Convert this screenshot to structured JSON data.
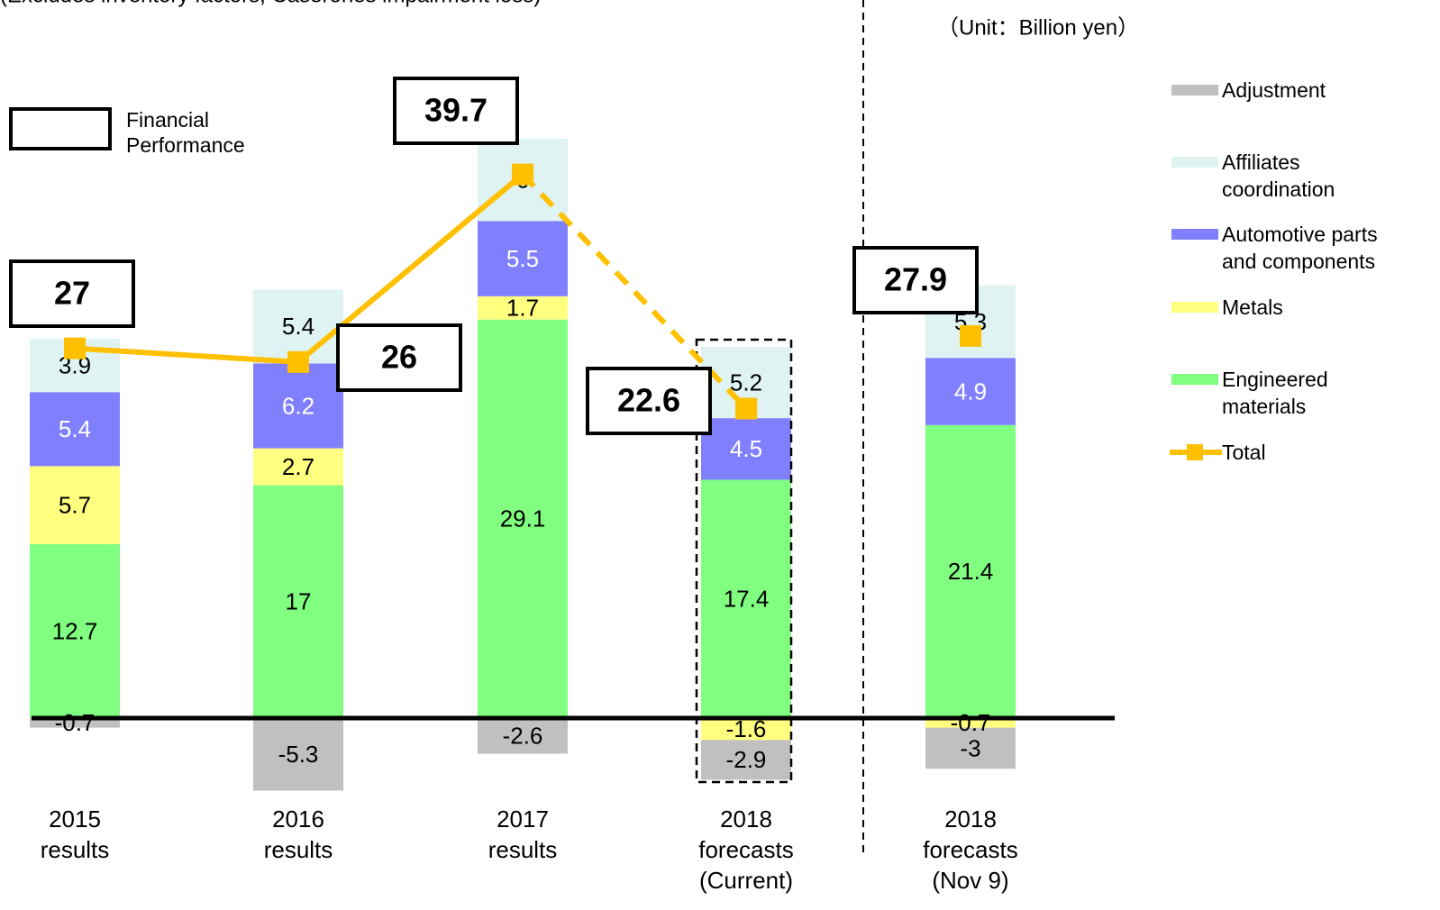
{
  "subtitle": "(Excludes inventory factors, Caserones impairment loss)",
  "unit_note": "（Unit：Billion yen）",
  "box_legend": "Financial Performance",
  "chart_data": {
    "type": "bar",
    "stacked": true,
    "categories": [
      "2015 results",
      "2016 results",
      "2017 results",
      "2018 forecasts (Current)",
      "2018 forecasts (Nov 9)"
    ],
    "series": [
      {
        "name": "Engineered materials",
        "color": "#80ff80",
        "label_color": "#000000",
        "values": [
          12.7,
          17.0,
          29.1,
          17.4,
          21.4
        ]
      },
      {
        "name": "Metals",
        "color": "#ffff80",
        "label_color": "#000000",
        "values": [
          5.7,
          2.7,
          1.7,
          -1.6,
          -0.7
        ]
      },
      {
        "name": "Automotive parts and components",
        "color": "#8080ff",
        "label_color": "#ffffff",
        "values": [
          5.4,
          6.2,
          5.5,
          4.5,
          4.9
        ]
      },
      {
        "name": "Affiliates coordination",
        "color": "#dff3f3",
        "label_color": "#000000",
        "values": [
          3.9,
          5.4,
          6.0,
          5.2,
          5.3
        ]
      },
      {
        "name": "Adjustment",
        "color": "#c0c0c0",
        "label_color": "#000000",
        "values": [
          -0.7,
          -5.3,
          -2.6,
          -2.9,
          -3.0
        ]
      },
      {
        "name": "Total",
        "type": "line",
        "color": "#ffc000",
        "values": [
          27.0,
          26.0,
          39.7,
          22.6,
          27.9
        ]
      }
    ]
  }
}
